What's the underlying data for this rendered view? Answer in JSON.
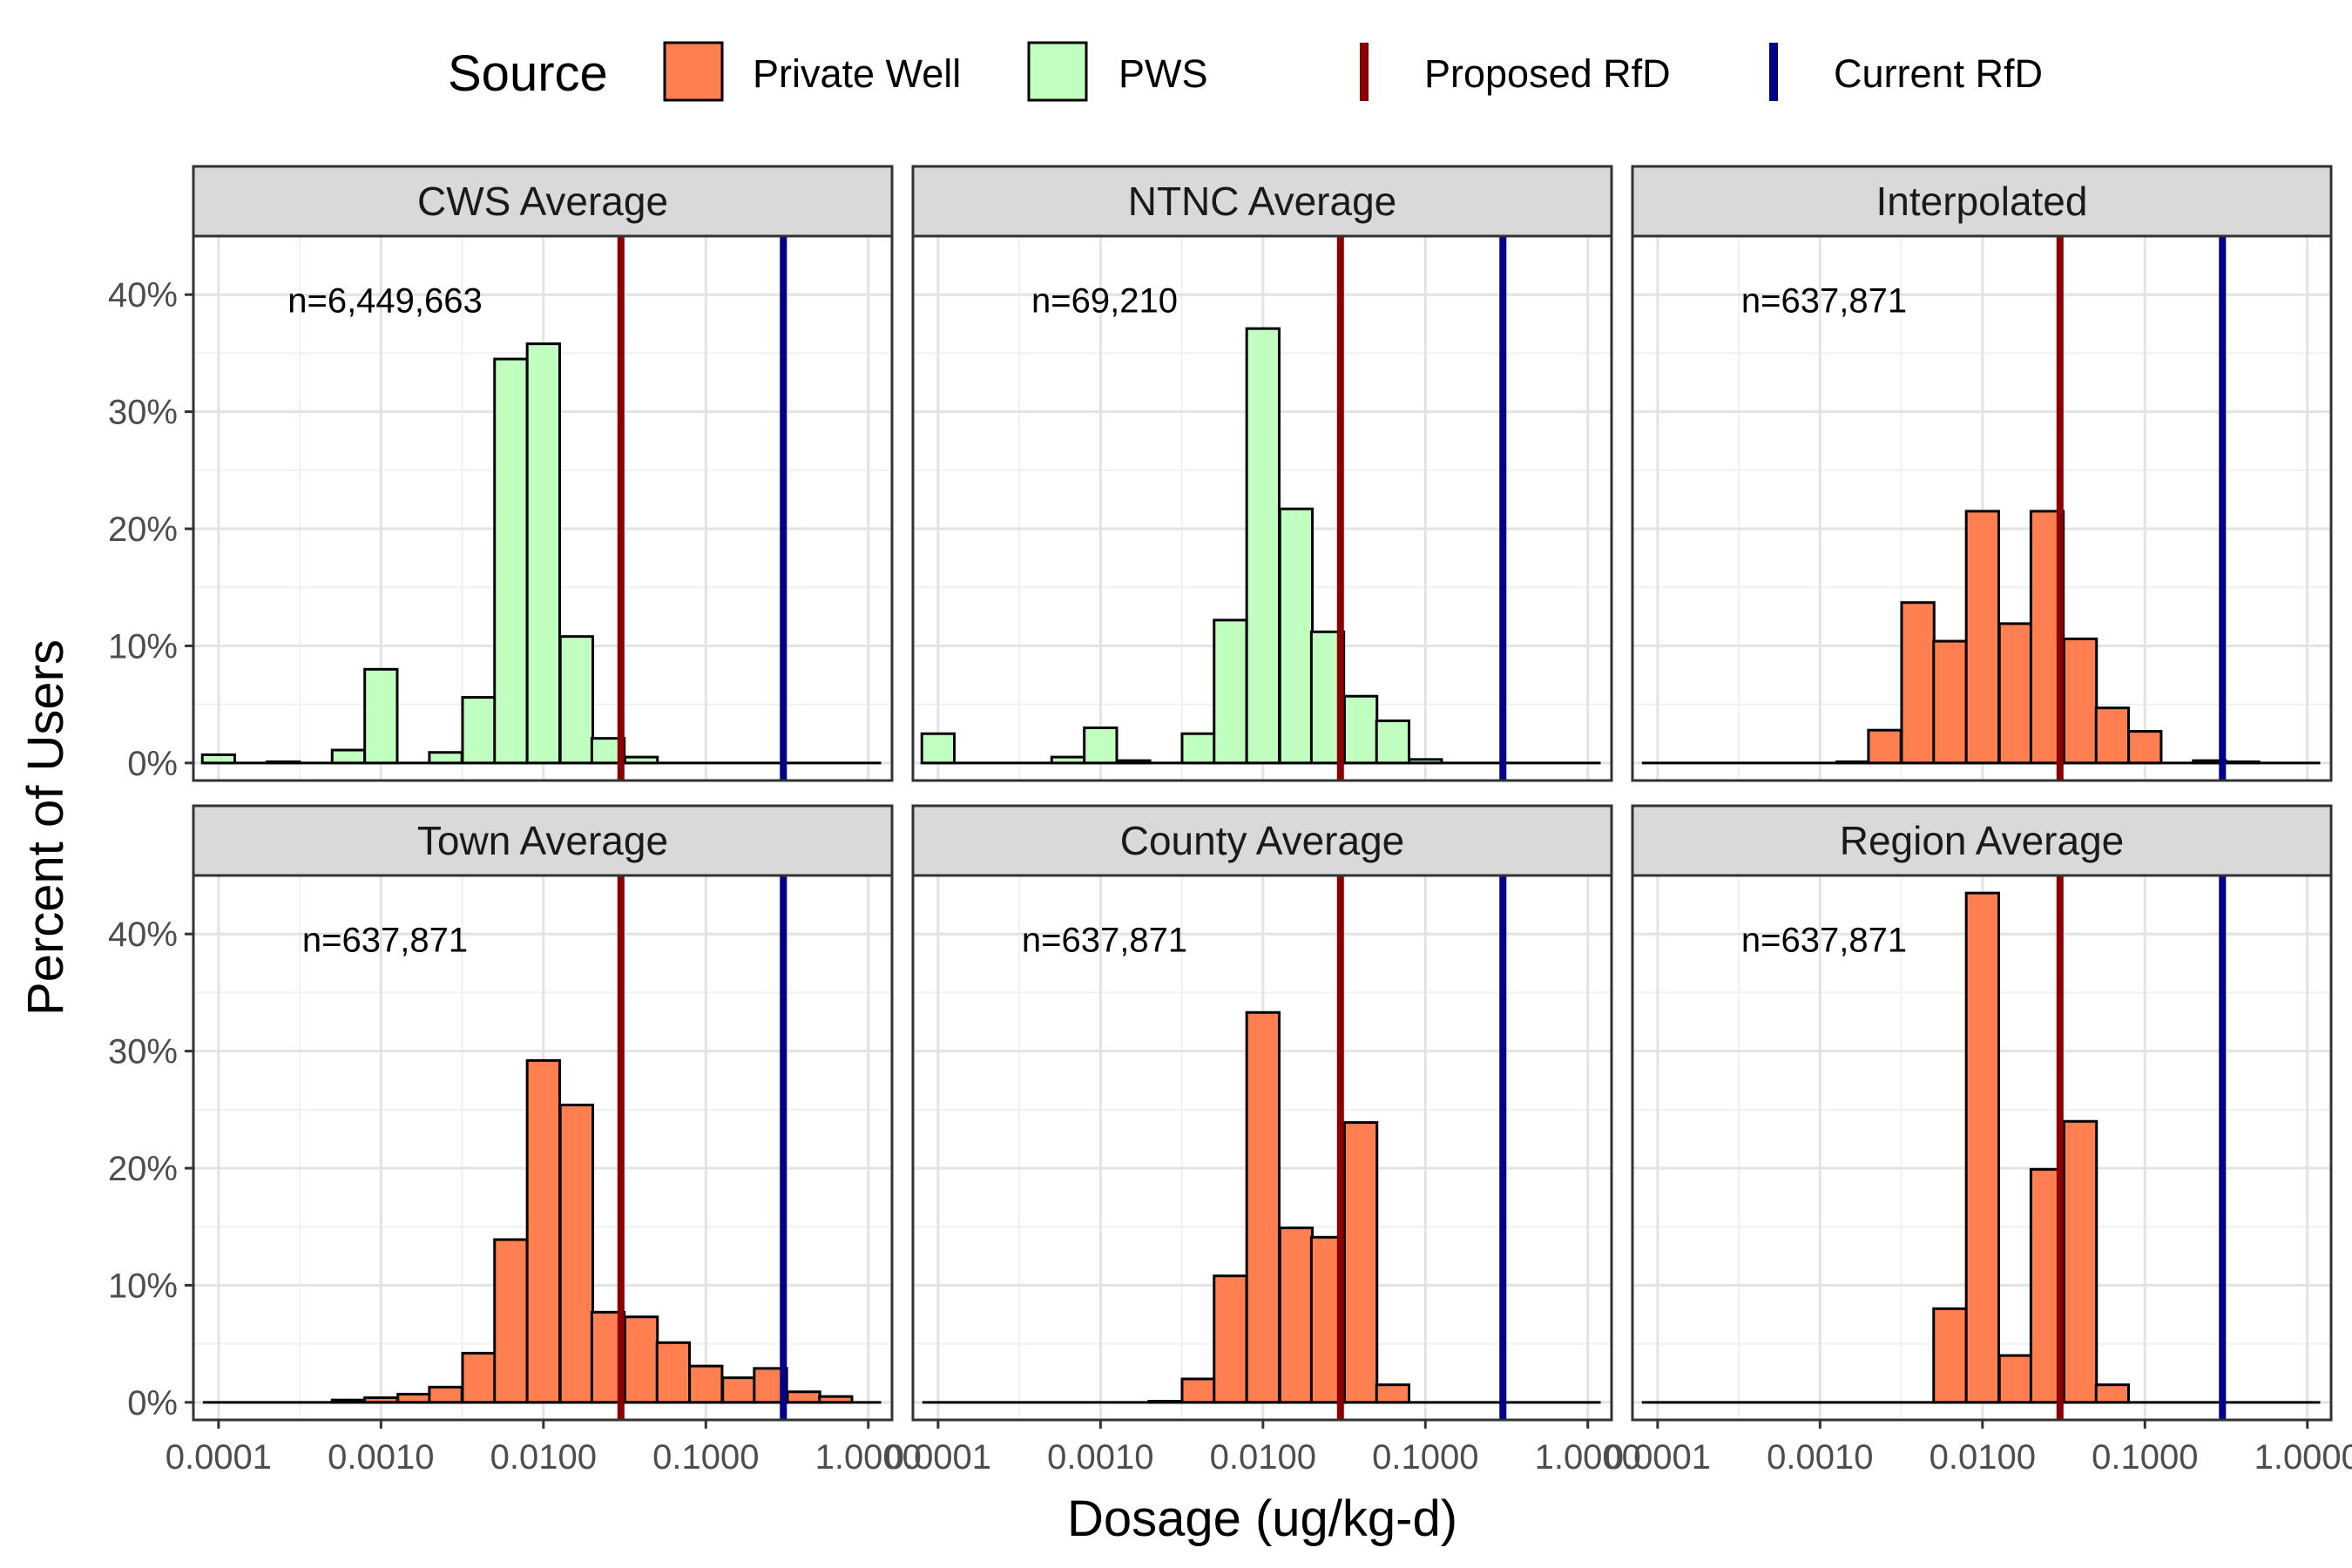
{
  "chart_data": {
    "type": "bar",
    "variant": "faceted-histogram",
    "xlabel": "Dosage (ug/kg-d)",
    "ylabel": "Percent of Users",
    "x_scale": "log10",
    "x_ticks": [
      0.0001,
      0.001,
      0.01,
      0.1,
      1.0
    ],
    "x_tick_labels": [
      "0.0001",
      "0.0010",
      "0.0100",
      "0.1000",
      "1.0000"
    ],
    "y_ticks": [
      0,
      10,
      20,
      30,
      40
    ],
    "y_tick_labels": [
      "0%",
      "10%",
      "20%",
      "30%",
      "40%"
    ],
    "xlim": [
      7e-05,
      1.4
    ],
    "ylim": [
      -1.5,
      45
    ],
    "grid": true,
    "legend": {
      "title": "Source",
      "position": "top",
      "items": [
        {
          "label": "Private Well",
          "type": "fill",
          "color": "#FF7F50"
        },
        {
          "label": "PWS",
          "type": "fill",
          "color": "#C1FFC1"
        },
        {
          "label": "Proposed RfD",
          "type": "line",
          "color": "#8B0000"
        },
        {
          "label": "Current RfD",
          "type": "line",
          "color": "#00008B"
        }
      ]
    },
    "reference_lines": [
      {
        "name": "Proposed RfD",
        "x": 0.03,
        "color": "#8B0000"
      },
      {
        "name": "Current RfD",
        "x": 0.3,
        "color": "#00008B"
      }
    ],
    "bin_width_log10": 0.2,
    "baseline_range": [
      8e-05,
      1.2
    ],
    "panels": [
      {
        "title": "CWS Average",
        "annotation": "n=6,449,663",
        "source": "PWS",
        "fill": "#C1FFC1",
        "bins": [
          {
            "x": 0.0001,
            "value": 0.7
          },
          {
            "x": 0.00025,
            "value": 0.1
          },
          {
            "x": 0.00063,
            "value": 1.1
          },
          {
            "x": 0.001,
            "value": 8.0
          },
          {
            "x": 0.0025,
            "value": 0.9
          },
          {
            "x": 0.004,
            "value": 5.6
          },
          {
            "x": 0.0063,
            "value": 34.5
          },
          {
            "x": 0.01,
            "value": 35.8
          },
          {
            "x": 0.016,
            "value": 10.8
          },
          {
            "x": 0.025,
            "value": 2.1
          },
          {
            "x": 0.04,
            "value": 0.5
          }
        ]
      },
      {
        "title": "NTNC Average",
        "annotation": "n=69,210",
        "source": "PWS",
        "fill": "#C1FFC1",
        "bins": [
          {
            "x": 0.0001,
            "value": 2.5
          },
          {
            "x": 0.00063,
            "value": 0.5
          },
          {
            "x": 0.001,
            "value": 3.0
          },
          {
            "x": 0.0016,
            "value": 0.2
          },
          {
            "x": 0.004,
            "value": 2.5
          },
          {
            "x": 0.0063,
            "value": 12.2
          },
          {
            "x": 0.01,
            "value": 37.1
          },
          {
            "x": 0.016,
            "value": 21.7
          },
          {
            "x": 0.025,
            "value": 11.2
          },
          {
            "x": 0.04,
            "value": 5.7
          },
          {
            "x": 0.063,
            "value": 3.6
          },
          {
            "x": 0.1,
            "value": 0.3
          }
        ]
      },
      {
        "title": "Interpolated",
        "annotation": "n=637,871",
        "source": "Private Well",
        "fill": "#FF7F50",
        "bins": [
          {
            "x": 0.0016,
            "value": 0.1
          },
          {
            "x": 0.0025,
            "value": 2.8
          },
          {
            "x": 0.004,
            "value": 13.7
          },
          {
            "x": 0.0063,
            "value": 10.4
          },
          {
            "x": 0.01,
            "value": 21.5
          },
          {
            "x": 0.016,
            "value": 11.9
          },
          {
            "x": 0.025,
            "value": 21.5
          },
          {
            "x": 0.04,
            "value": 10.6
          },
          {
            "x": 0.063,
            "value": 4.7
          },
          {
            "x": 0.1,
            "value": 2.7
          },
          {
            "x": 0.25,
            "value": 0.2
          },
          {
            "x": 0.4,
            "value": 0.1
          }
        ]
      },
      {
        "title": "Town Average",
        "annotation": "n=637,871",
        "source": "Private Well",
        "fill": "#FF7F50",
        "bins": [
          {
            "x": 0.00063,
            "value": 0.2
          },
          {
            "x": 0.001,
            "value": 0.4
          },
          {
            "x": 0.0016,
            "value": 0.7
          },
          {
            "x": 0.0025,
            "value": 1.3
          },
          {
            "x": 0.004,
            "value": 4.2
          },
          {
            "x": 0.0063,
            "value": 13.9
          },
          {
            "x": 0.01,
            "value": 29.2
          },
          {
            "x": 0.016,
            "value": 25.4
          },
          {
            "x": 0.025,
            "value": 7.7
          },
          {
            "x": 0.04,
            "value": 7.3
          },
          {
            "x": 0.063,
            "value": 5.1
          },
          {
            "x": 0.1,
            "value": 3.1
          },
          {
            "x": 0.16,
            "value": 2.1
          },
          {
            "x": 0.25,
            "value": 2.9
          },
          {
            "x": 0.4,
            "value": 0.9
          },
          {
            "x": 0.63,
            "value": 0.5
          }
        ]
      },
      {
        "title": "County Average",
        "annotation": "n=637,871",
        "source": "Private Well",
        "fill": "#FF7F50",
        "bins": [
          {
            "x": 0.0025,
            "value": 0.1
          },
          {
            "x": 0.004,
            "value": 2.0
          },
          {
            "x": 0.0063,
            "value": 10.8
          },
          {
            "x": 0.01,
            "value": 33.3
          },
          {
            "x": 0.016,
            "value": 14.9
          },
          {
            "x": 0.025,
            "value": 14.1
          },
          {
            "x": 0.04,
            "value": 23.9
          },
          {
            "x": 0.063,
            "value": 1.5
          }
        ]
      },
      {
        "title": "Region Average",
        "annotation": "n=637,871",
        "source": "Private Well",
        "fill": "#FF7F50",
        "bins": [
          {
            "x": 0.0063,
            "value": 8.0
          },
          {
            "x": 0.01,
            "value": 43.5
          },
          {
            "x": 0.016,
            "value": 4.0
          },
          {
            "x": 0.025,
            "value": 19.9
          },
          {
            "x": 0.04,
            "value": 24.0
          },
          {
            "x": 0.063,
            "value": 1.5
          }
        ]
      }
    ]
  }
}
